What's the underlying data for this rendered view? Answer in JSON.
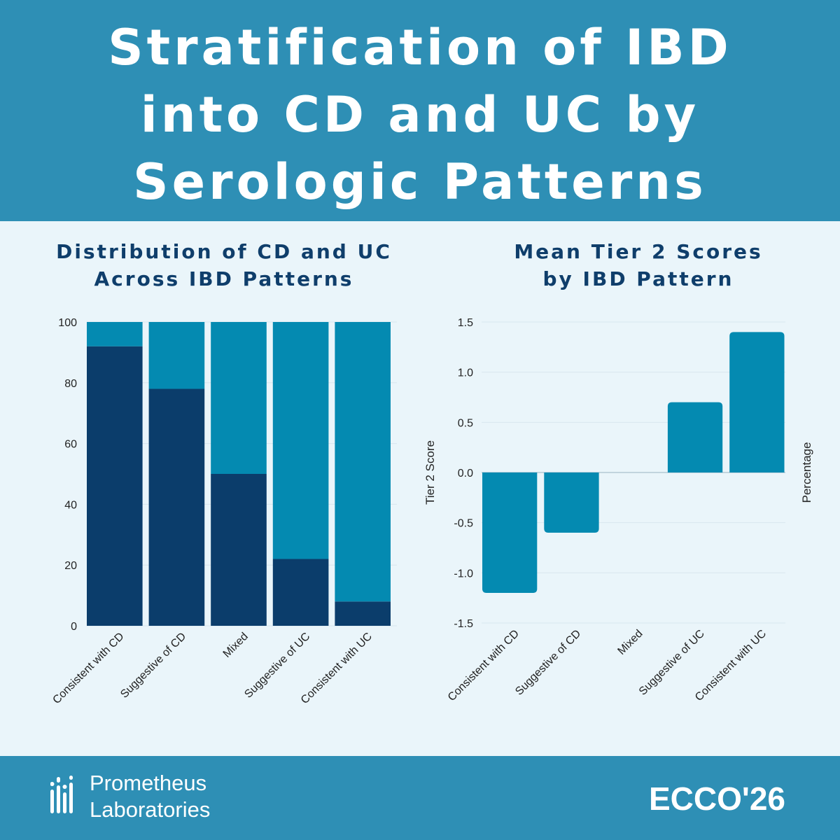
{
  "header": {
    "title_lines": [
      "Stratification of IBD",
      "into CD and UC by",
      "Serologic Patterns"
    ]
  },
  "colors": {
    "header_bg": "#2e8fb5",
    "panel_bg": "#eaf5fa",
    "cd_color": "#0b3d6b",
    "uc_color": "#048ab1",
    "title_color": "#0f3e6b"
  },
  "chart_data": [
    {
      "type": "bar",
      "stacked": true,
      "title_lines": [
        "Distribution of CD and UC",
        "Across IBD Patterns"
      ],
      "categories": [
        "Consistent with CD",
        "Suggestive of CD",
        "Mixed",
        "Suggestive of UC",
        "Consistent with UC"
      ],
      "series": [
        {
          "values": [
            92,
            78,
            50,
            22,
            8
          ],
          "color": "#0b3d6b"
        },
        {
          "values": [
            8,
            22,
            50,
            78,
            92
          ],
          "color": "#048ab1"
        }
      ],
      "yticks": [
        "0",
        "20",
        "40",
        "60",
        "80",
        "100"
      ],
      "ylim": [
        0,
        100
      ],
      "grid": true
    },
    {
      "type": "bar",
      "title_lines": [
        "Mean Tier 2 Scores",
        "by IBD Pattern"
      ],
      "categories": [
        "Consistent with CD",
        "Suggestive of CD",
        "Mixed",
        "Suggestive of UC",
        "Consistent with UC"
      ],
      "values": [
        -1.2,
        -0.6,
        0.0,
        0.7,
        1.4
      ],
      "color": "#048ab1",
      "yticks": [
        "1.5",
        "1.0",
        "0.5",
        "0.0",
        "-0.5",
        "-1.0",
        "-1.5"
      ],
      "ylim": [
        -1.5,
        1.5
      ],
      "ylabel": "Tier 2 Score",
      "ylabel_right": "Percentage",
      "grid": true
    }
  ],
  "footer": {
    "brand_lines": [
      "Prometheus",
      "Laboratories"
    ],
    "event": "ECCO'26"
  }
}
